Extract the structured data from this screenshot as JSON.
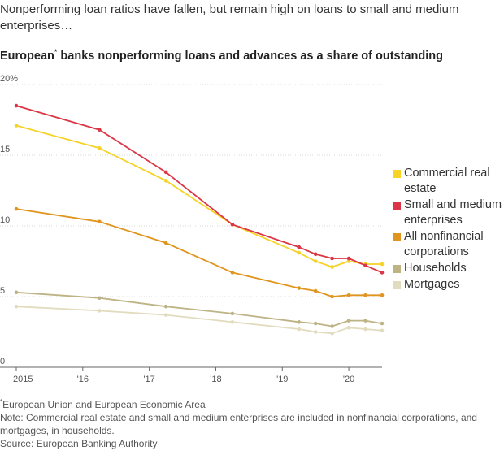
{
  "header": {
    "intro": "Nonperforming loan ratios have fallen, but remain high on loans to small and medium enterprises…",
    "title": "European banks nonperforming loans and advances as a share of outstanding",
    "title_marker": "*"
  },
  "chart_data": {
    "type": "line",
    "title": "European* banks nonperforming loans and advances as a share of outstanding",
    "y_ticks": [
      "20%",
      "15",
      "10",
      "5",
      "0"
    ],
    "x_ticks": [
      "2015",
      "'16",
      "'17",
      "'18",
      "'19",
      "'20"
    ],
    "ylim": [
      0,
      20
    ],
    "grid": true,
    "legend_placement": "right",
    "x": [
      2015.0,
      2016.25,
      2017.25,
      2018.25,
      2019.25,
      2019.5,
      2019.75,
      2020.0,
      2020.25,
      2020.5
    ],
    "series": [
      {
        "name": "Commercial real estate",
        "color": "#f5d327",
        "values": [
          17.1,
          15.5,
          13.2,
          10.1,
          8.1,
          7.5,
          7.1,
          7.5,
          7.3,
          7.3
        ]
      },
      {
        "name": "Small and medium enterprises",
        "color": "#dc3545",
        "values": [
          18.5,
          16.8,
          13.8,
          10.1,
          8.5,
          8.0,
          7.7,
          7.7,
          7.2,
          6.7
        ]
      },
      {
        "name": "All nonfinancial corporations",
        "color": "#e0951e",
        "values": [
          11.2,
          10.3,
          8.8,
          6.7,
          5.6,
          5.4,
          5.0,
          5.1,
          5.1,
          5.1
        ]
      },
      {
        "name": "Households",
        "color": "#bdb385",
        "values": [
          5.3,
          4.9,
          4.3,
          3.8,
          3.2,
          3.1,
          2.9,
          3.3,
          3.3,
          3.1
        ]
      },
      {
        "name": "Mortgages",
        "color": "#e2dcbf",
        "values": [
          4.3,
          4.0,
          3.7,
          3.2,
          2.7,
          2.5,
          2.4,
          2.8,
          2.7,
          2.6
        ]
      }
    ]
  },
  "legend": [
    {
      "label": "Commercial real estate",
      "color": "#f5d327"
    },
    {
      "label": "Small and medium enterprises",
      "color": "#dc3545"
    },
    {
      "label": "All nonfinancial corporations",
      "color": "#e0951e"
    },
    {
      "label": "Households",
      "color": "#bdb385"
    },
    {
      "label": "Mortgages",
      "color": "#e2dcbf"
    }
  ],
  "notes": {
    "footnote_marker": "*",
    "footnote": "European Union and European Economic Area",
    "note": "Note: Commercial real estate and small and medium enterprises are included in nonfinancial corporations, and mortgages, in households.",
    "source": "Source: European Banking Authority"
  }
}
